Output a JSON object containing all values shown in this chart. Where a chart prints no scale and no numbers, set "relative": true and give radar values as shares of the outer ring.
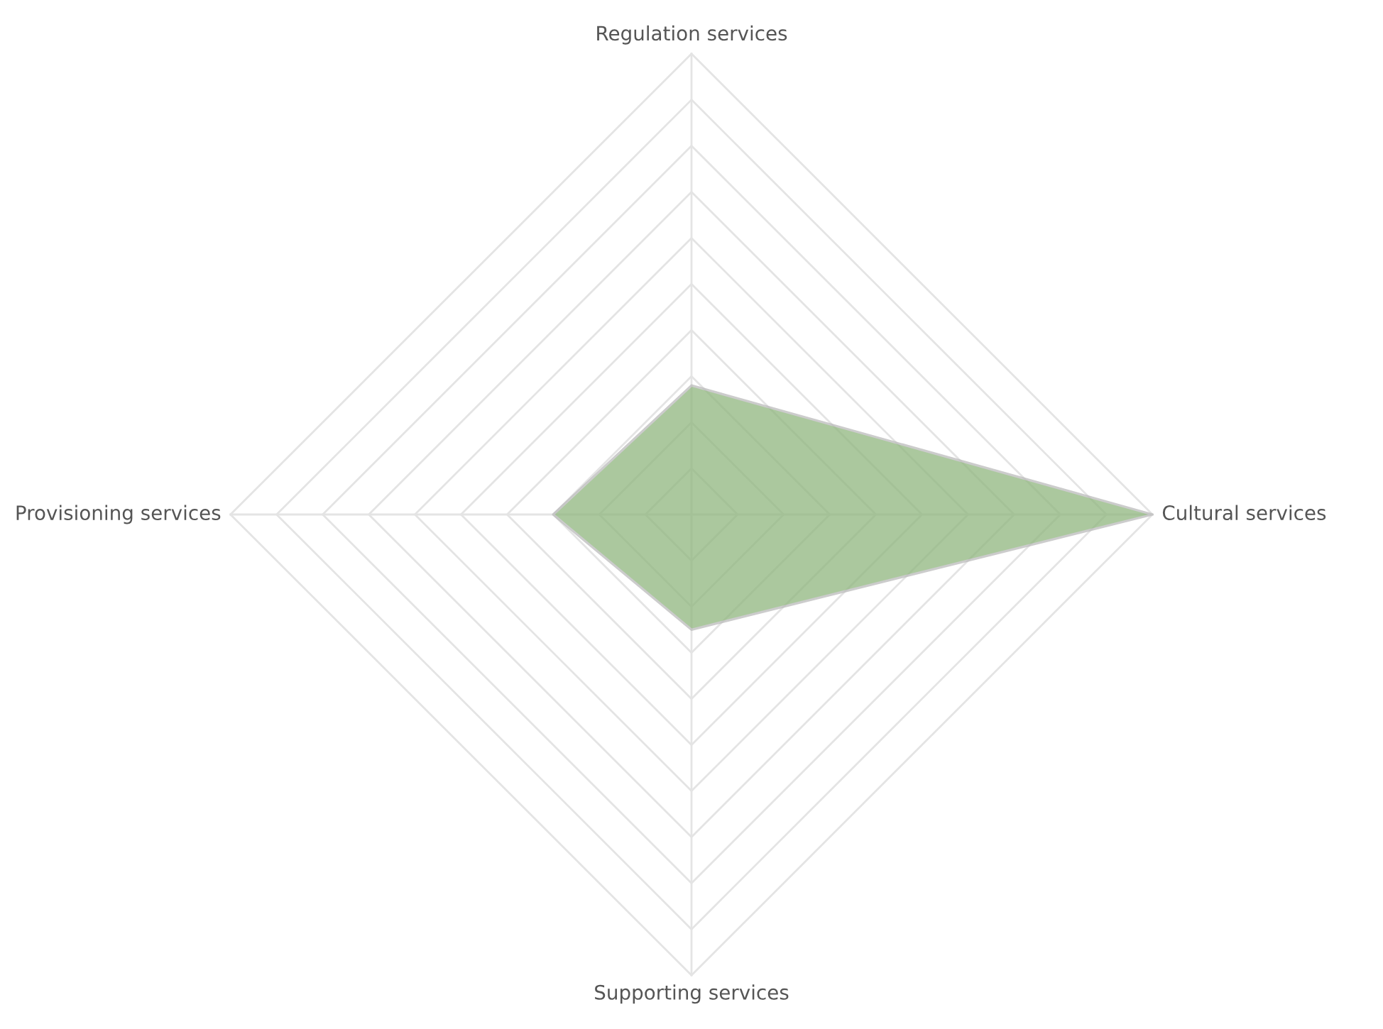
{
  "chart_data": {
    "type": "radar",
    "relative": true,
    "categories": [
      "Regulation services",
      "Cultural services",
      "Supporting services",
      "Provisioning services"
    ],
    "series": [
      {
        "color": "#8fb67e",
        "values": [
          0.28,
          1,
          0.25,
          0.3
        ]
      }
    ],
    "grid": true
  }
}
